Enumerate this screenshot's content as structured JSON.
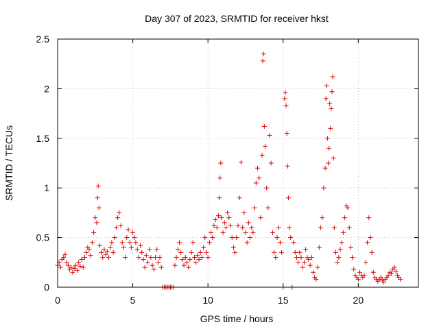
{
  "chart_data": {
    "type": "scatter",
    "title": "Day 307 of 2023, SRMTID for receiver hkst",
    "xlabel": "GPS time / hours",
    "ylabel": "SRMTID / TECUs",
    "xlim": [
      0,
      24
    ],
    "ylim": [
      0,
      2.5
    ],
    "xticks": [
      "0",
      "5",
      "10",
      "15",
      "20"
    ],
    "yticks": [
      "0",
      "0.5",
      "1",
      "1.5",
      "2",
      "2.5"
    ],
    "grid": true,
    "marker": "+",
    "color": "#e00000",
    "series": [
      {
        "name": "SRMTID",
        "points": [
          [
            0.0,
            0.22
          ],
          [
            0.1,
            0.25
          ],
          [
            0.2,
            0.2
          ],
          [
            0.3,
            0.28
          ],
          [
            0.4,
            0.3
          ],
          [
            0.5,
            0.33
          ],
          [
            0.6,
            0.25
          ],
          [
            0.7,
            0.22
          ],
          [
            0.8,
            0.18
          ],
          [
            0.9,
            0.2
          ],
          [
            1.0,
            0.15
          ],
          [
            1.1,
            0.19
          ],
          [
            1.2,
            0.22
          ],
          [
            1.3,
            0.17
          ],
          [
            1.4,
            0.25
          ],
          [
            1.5,
            0.21
          ],
          [
            1.6,
            0.28
          ],
          [
            1.7,
            0.2
          ],
          [
            1.8,
            0.3
          ],
          [
            1.9,
            0.35
          ],
          [
            2.0,
            0.4
          ],
          [
            2.1,
            0.38
          ],
          [
            2.2,
            0.32
          ],
          [
            2.3,
            0.45
          ],
          [
            2.4,
            0.55
          ],
          [
            2.5,
            0.7
          ],
          [
            2.6,
            0.65
          ],
          [
            2.65,
            0.9
          ],
          [
            2.7,
            1.02
          ],
          [
            2.75,
            0.8
          ],
          [
            2.8,
            0.42
          ],
          [
            2.9,
            0.35
          ],
          [
            3.0,
            0.3
          ],
          [
            3.1,
            0.38
          ],
          [
            3.2,
            0.33
          ],
          [
            3.3,
            0.36
          ],
          [
            3.4,
            0.3
          ],
          [
            3.5,
            0.4
          ],
          [
            3.6,
            0.45
          ],
          [
            3.7,
            0.35
          ],
          [
            3.8,
            0.5
          ],
          [
            3.9,
            0.6
          ],
          [
            4.0,
            0.7
          ],
          [
            4.1,
            0.75
          ],
          [
            4.2,
            0.62
          ],
          [
            4.3,
            0.45
          ],
          [
            4.4,
            0.4
          ],
          [
            4.5,
            0.3
          ],
          [
            4.6,
            0.5
          ],
          [
            4.7,
            0.58
          ],
          [
            4.8,
            0.45
          ],
          [
            4.9,
            0.4
          ],
          [
            5.0,
            0.55
          ],
          [
            5.1,
            0.5
          ],
          [
            5.2,
            0.45
          ],
          [
            5.3,
            0.38
          ],
          [
            5.4,
            0.3
          ],
          [
            5.5,
            0.42
          ],
          [
            5.6,
            0.35
          ],
          [
            5.7,
            0.28
          ],
          [
            5.8,
            0.2
          ],
          [
            5.9,
            0.32
          ],
          [
            6.0,
            0.25
          ],
          [
            6.1,
            0.38
          ],
          [
            6.2,
            0.3
          ],
          [
            6.3,
            0.22
          ],
          [
            6.4,
            0.18
          ],
          [
            6.5,
            0.3
          ],
          [
            6.6,
            0.38
          ],
          [
            6.7,
            0.25
          ],
          [
            6.8,
            0.3
          ],
          [
            6.9,
            0.2
          ],
          [
            7.0,
            0.0
          ],
          [
            7.1,
            0.0
          ],
          [
            7.2,
            0.0
          ],
          [
            7.3,
            0.0
          ],
          [
            7.4,
            0.0
          ],
          [
            7.5,
            0.0
          ],
          [
            7.6,
            0.0
          ],
          [
            7.7,
            0.0
          ],
          [
            7.8,
            0.22
          ],
          [
            7.9,
            0.3
          ],
          [
            8.0,
            0.38
          ],
          [
            8.1,
            0.45
          ],
          [
            8.2,
            0.35
          ],
          [
            8.3,
            0.28
          ],
          [
            8.4,
            0.22
          ],
          [
            8.5,
            0.3
          ],
          [
            8.6,
            0.25
          ],
          [
            8.7,
            0.2
          ],
          [
            8.8,
            0.28
          ],
          [
            8.9,
            0.35
          ],
          [
            9.0,
            0.45
          ],
          [
            9.1,
            0.3
          ],
          [
            9.2,
            0.25
          ],
          [
            9.3,
            0.32
          ],
          [
            9.4,
            0.28
          ],
          [
            9.5,
            0.35
          ],
          [
            9.6,
            0.3
          ],
          [
            9.7,
            0.4
          ],
          [
            9.8,
            0.5
          ],
          [
            9.9,
            0.35
          ],
          [
            10.0,
            0.3
          ],
          [
            10.1,
            0.45
          ],
          [
            10.2,
            0.55
          ],
          [
            10.3,
            0.5
          ],
          [
            10.4,
            0.62
          ],
          [
            10.5,
            0.68
          ],
          [
            10.6,
            0.6
          ],
          [
            10.7,
            0.72
          ],
          [
            10.75,
            0.9
          ],
          [
            10.8,
            1.1
          ],
          [
            10.85,
            1.25
          ],
          [
            10.9,
            0.7
          ],
          [
            11.0,
            0.55
          ],
          [
            11.1,
            0.65
          ],
          [
            11.2,
            0.6
          ],
          [
            11.3,
            0.75
          ],
          [
            11.4,
            0.7
          ],
          [
            11.5,
            0.62
          ],
          [
            11.6,
            0.5
          ],
          [
            11.7,
            0.4
          ],
          [
            11.8,
            0.35
          ],
          [
            11.9,
            0.5
          ],
          [
            12.0,
            0.62
          ],
          [
            12.1,
            0.9
          ],
          [
            12.2,
            1.26
          ],
          [
            12.3,
            0.6
          ],
          [
            12.4,
            0.75
          ],
          [
            12.5,
            0.55
          ],
          [
            12.6,
            0.45
          ],
          [
            12.7,
            0.65
          ],
          [
            12.8,
            0.5
          ],
          [
            12.9,
            0.6
          ],
          [
            13.0,
            0.55
          ],
          [
            13.1,
            0.8
          ],
          [
            13.2,
            1.05
          ],
          [
            13.3,
            1.2
          ],
          [
            13.4,
            1.1
          ],
          [
            13.5,
            0.7
          ],
          [
            13.6,
            1.33
          ],
          [
            13.65,
            2.28
          ],
          [
            13.7,
            2.35
          ],
          [
            13.75,
            1.62
          ],
          [
            13.8,
            1.42
          ],
          [
            13.9,
            1.0
          ],
          [
            14.0,
            0.8
          ],
          [
            14.1,
            1.53
          ],
          [
            14.2,
            1.25
          ],
          [
            14.3,
            0.55
          ],
          [
            14.4,
            0.35
          ],
          [
            14.5,
            0.3
          ],
          [
            14.6,
            0.5
          ],
          [
            14.7,
            0.6
          ],
          [
            14.8,
            0.45
          ],
          [
            14.9,
            0.35
          ],
          [
            15.0,
            0.0
          ],
          [
            15.1,
            1.9
          ],
          [
            15.15,
            1.96
          ],
          [
            15.2,
            1.83
          ],
          [
            15.25,
            1.55
          ],
          [
            15.3,
            1.22
          ],
          [
            15.35,
            0.9
          ],
          [
            15.4,
            0.6
          ],
          [
            15.5,
            0.5
          ],
          [
            15.6,
            0.0
          ],
          [
            15.7,
            0.45
          ],
          [
            15.8,
            0.35
          ],
          [
            15.9,
            0.3
          ],
          [
            16.0,
            0.25
          ],
          [
            16.1,
            0.35
          ],
          [
            16.2,
            0.3
          ],
          [
            16.3,
            0.2
          ],
          [
            16.4,
            0.25
          ],
          [
            16.5,
            0.38
          ],
          [
            16.6,
            0.3
          ],
          [
            16.7,
            0.28
          ],
          [
            16.8,
            0.22
          ],
          [
            16.9,
            0.3
          ],
          [
            17.0,
            0.15
          ],
          [
            17.1,
            0.1
          ],
          [
            17.2,
            0.08
          ],
          [
            17.3,
            0.2
          ],
          [
            17.4,
            0.4
          ],
          [
            17.5,
            0.6
          ],
          [
            17.6,
            0.7
          ],
          [
            17.7,
            1.0
          ],
          [
            17.8,
            1.2
          ],
          [
            17.85,
            1.9
          ],
          [
            17.9,
            2.03
          ],
          [
            17.95,
            1.5
          ],
          [
            18.0,
            1.25
          ],
          [
            18.05,
            1.4
          ],
          [
            18.1,
            1.85
          ],
          [
            18.15,
            1.6
          ],
          [
            18.2,
            1.8
          ],
          [
            18.25,
            1.97
          ],
          [
            18.3,
            2.12
          ],
          [
            18.35,
            1.3
          ],
          [
            18.4,
            0.6
          ],
          [
            18.5,
            0.35
          ],
          [
            18.6,
            0.25
          ],
          [
            18.7,
            0.3
          ],
          [
            18.8,
            0.38
          ],
          [
            18.9,
            0.45
          ],
          [
            19.0,
            0.55
          ],
          [
            19.1,
            0.7
          ],
          [
            19.2,
            0.82
          ],
          [
            19.3,
            0.8
          ],
          [
            19.4,
            0.6
          ],
          [
            19.5,
            0.4
          ],
          [
            19.6,
            0.3
          ],
          [
            19.7,
            0.18
          ],
          [
            19.8,
            0.12
          ],
          [
            19.9,
            0.1
          ],
          [
            20.0,
            0.08
          ],
          [
            20.1,
            0.15
          ],
          [
            20.2,
            0.12
          ],
          [
            20.3,
            0.1
          ],
          [
            20.4,
            0.12
          ],
          [
            20.5,
            0.25
          ],
          [
            20.6,
            0.45
          ],
          [
            20.7,
            0.7
          ],
          [
            20.8,
            0.5
          ],
          [
            20.9,
            0.35
          ],
          [
            21.0,
            0.15
          ],
          [
            21.1,
            0.1
          ],
          [
            21.2,
            0.08
          ],
          [
            21.3,
            0.06
          ],
          [
            21.4,
            0.08
          ],
          [
            21.5,
            0.1
          ],
          [
            21.6,
            0.07
          ],
          [
            21.7,
            0.05
          ],
          [
            21.8,
            0.08
          ],
          [
            21.9,
            0.1
          ],
          [
            22.0,
            0.12
          ],
          [
            22.1,
            0.15
          ],
          [
            22.2,
            0.14
          ],
          [
            22.3,
            0.18
          ],
          [
            22.4,
            0.2
          ],
          [
            22.5,
            0.16
          ],
          [
            22.6,
            0.12
          ],
          [
            22.7,
            0.1
          ],
          [
            22.8,
            0.08
          ]
        ]
      }
    ]
  }
}
